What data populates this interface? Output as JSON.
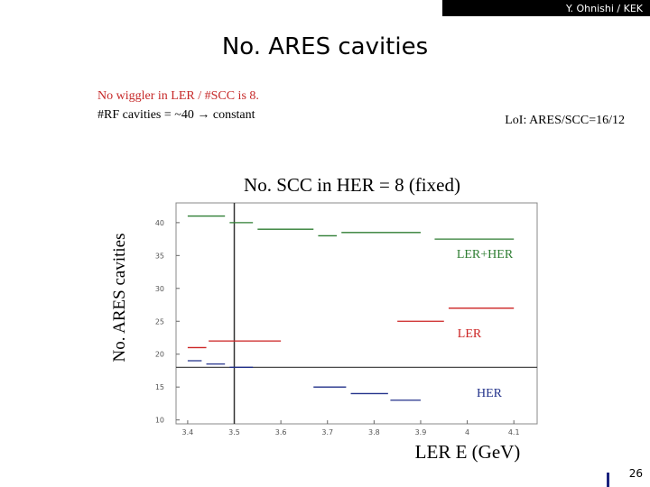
{
  "header": "Y. Ohnishi / KEK",
  "title": "No. ARES cavities",
  "notes": [
    "No wiggler in LER / #SCC is 8.",
    "#RF cavities = ~40 → constant"
  ],
  "loi": "LoI: ARES/SCC=16/12",
  "page_number": "26",
  "chart_data": {
    "type": "line",
    "title": "No. SCC in HER = 8 (fixed)",
    "x_label": "LER E (GeV)",
    "y_label": "No. ARES cavities",
    "xlim": [
      3.375,
      4.15
    ],
    "ylim": [
      9.4,
      43
    ],
    "xticks": [
      3.4,
      3.5,
      3.6,
      3.7,
      3.8,
      3.9,
      4,
      4.1
    ],
    "yticks": [
      10,
      15,
      20,
      25,
      30,
      35,
      40
    ],
    "vline": 3.5,
    "hline": 18,
    "series": [
      {
        "name": "LER+HER",
        "color": "#2e7d32",
        "x": [
          3.4,
          3.48,
          null,
          3.49,
          3.54,
          null,
          3.55,
          3.67,
          null,
          3.68,
          3.72,
          null,
          3.73,
          3.9,
          null,
          3.93,
          4.1
        ],
        "values": [
          41,
          41,
          null,
          40,
          40,
          null,
          39,
          39,
          null,
          38,
          38,
          null,
          38.5,
          38.5,
          null,
          37.5,
          37.5
        ]
      },
      {
        "name": "LER",
        "color": "#cc2222",
        "x": [
          3.4,
          3.44,
          null,
          3.445,
          3.6,
          null,
          3.85,
          3.95,
          null,
          3.96,
          4.1
        ],
        "values": [
          21,
          21,
          null,
          22,
          22,
          null,
          25,
          25,
          null,
          27,
          27
        ]
      },
      {
        "name": "HER",
        "color": "#22318a",
        "x": [
          3.4,
          3.43,
          null,
          3.44,
          3.48,
          null,
          3.49,
          3.54,
          null,
          3.67,
          3.74,
          null,
          3.75,
          3.83,
          null,
          3.835,
          3.9
        ],
        "values": [
          19,
          19,
          null,
          18.5,
          18.5,
          null,
          18,
          18,
          null,
          15,
          15,
          null,
          14,
          14,
          null,
          13,
          13
        ]
      }
    ]
  }
}
